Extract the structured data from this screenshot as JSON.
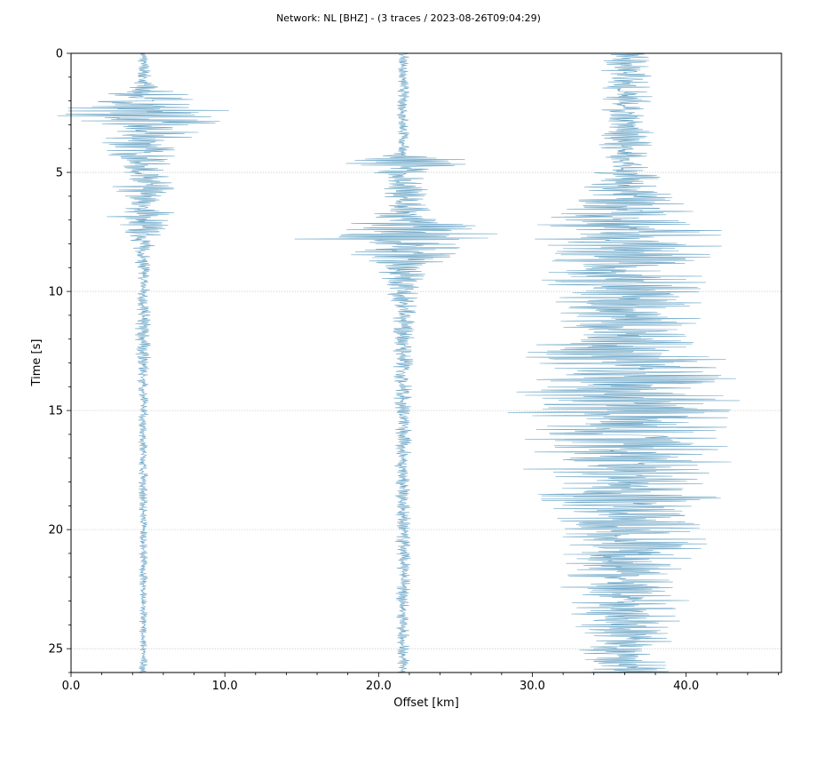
{
  "chart_data": {
    "type": "line",
    "title": "Network: NL [BHZ] - (3 traces / 2023-08-26T09:04:29)",
    "xlabel": "Offset [km]",
    "ylabel": "Time [s]",
    "xlim": [
      0.0,
      46.2
    ],
    "ylim": [
      0,
      26
    ],
    "y_inverted": true,
    "x_ticks": [
      0.0,
      10.0,
      20.0,
      30.0,
      40.0
    ],
    "x_tick_labels": [
      "0.0",
      "10.0",
      "20.0",
      "30.0",
      "40.0"
    ],
    "y_ticks": [
      0,
      5,
      10,
      15,
      20,
      25
    ],
    "y_tick_labels": [
      "0",
      "5",
      "10",
      "15",
      "20",
      "25"
    ],
    "grid": "horizontal dotted at major y ticks",
    "trace_color": "#6fa8c8",
    "series": [
      {
        "offset_km": 4.7,
        "envelope": [
          [
            0,
            0.25
          ],
          [
            1.2,
            0.5
          ],
          [
            1.6,
            1.8
          ],
          [
            2.6,
            5.5
          ],
          [
            3.2,
            3.0
          ],
          [
            4.0,
            2.0
          ],
          [
            5.0,
            1.2
          ],
          [
            5.6,
            1.8
          ],
          [
            6.3,
            1.0
          ],
          [
            6.9,
            2.0
          ],
          [
            7.5,
            1.0
          ],
          [
            8.3,
            0.5
          ],
          [
            9.5,
            0.35
          ],
          [
            12.0,
            0.45
          ],
          [
            14.0,
            0.3
          ],
          [
            17.0,
            0.25
          ],
          [
            26,
            0.22
          ]
        ]
      },
      {
        "offset_km": 21.6,
        "envelope": [
          [
            0,
            0.3
          ],
          [
            4.2,
            0.35
          ],
          [
            4.5,
            4.0
          ],
          [
            5.0,
            1.5
          ],
          [
            6.0,
            1.2
          ],
          [
            7.0,
            2.0
          ],
          [
            7.6,
            6.5
          ],
          [
            8.6,
            2.5
          ],
          [
            9.5,
            1.2
          ],
          [
            11.0,
            0.7
          ],
          [
            14.0,
            0.5
          ],
          [
            18.0,
            0.45
          ],
          [
            26,
            0.35
          ]
        ]
      },
      {
        "offset_km": 36.1,
        "envelope": [
          [
            0,
            1.3
          ],
          [
            4.5,
            1.5
          ],
          [
            5.6,
            2.5
          ],
          [
            6.6,
            3.5
          ],
          [
            7.2,
            5.5
          ],
          [
            8.7,
            5.0
          ],
          [
            10.0,
            4.2
          ],
          [
            11.8,
            4.5
          ],
          [
            13.0,
            5.5
          ],
          [
            15.4,
            6.5
          ],
          [
            16.5,
            5.5
          ],
          [
            18.2,
            5.0
          ],
          [
            20.0,
            4.5
          ],
          [
            22.0,
            3.5
          ],
          [
            25.0,
            2.5
          ],
          [
            26,
            2.2
          ]
        ]
      }
    ]
  }
}
